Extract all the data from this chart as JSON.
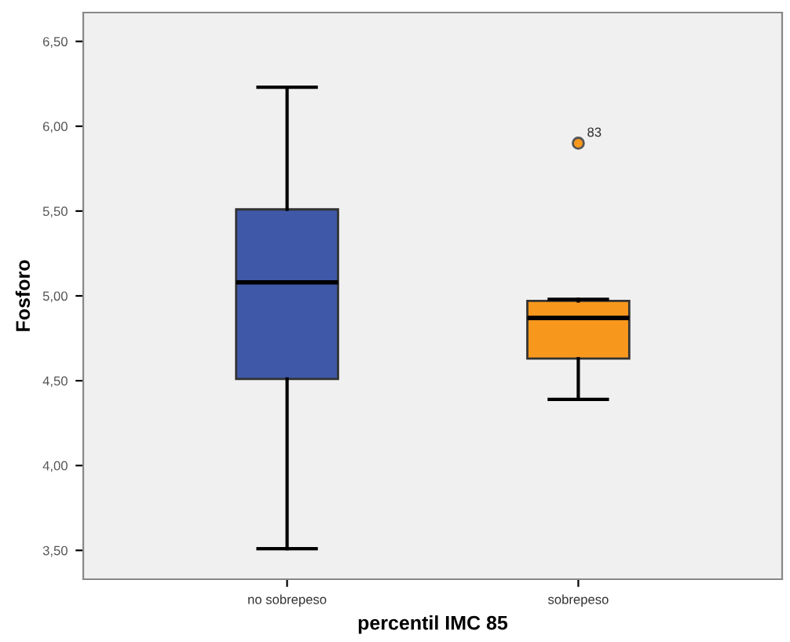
{
  "chart_data": {
    "type": "box",
    "xlabel": "percentil IMC 85",
    "ylabel": "Fosforo",
    "categories": [
      "no sobrepeso",
      "sobrepeso"
    ],
    "colors": [
      "#3f58a8",
      "#f7981d"
    ],
    "boxes": [
      {
        "low": 3.51,
        "q1": 4.51,
        "median": 5.08,
        "q3": 5.51,
        "high": 6.23
      },
      {
        "low": 4.39,
        "q1": 4.63,
        "median": 4.87,
        "q3": 4.97,
        "high": 4.98,
        "outliers": [
          5.9
        ]
      }
    ],
    "annotations": [
      "83"
    ],
    "ylim": [
      3.33,
      6.67
    ],
    "yticks": [
      {
        "value": 3.5,
        "label": "3,50"
      },
      {
        "value": 4.0,
        "label": "4,00"
      },
      {
        "value": 4.5,
        "label": "4,50"
      },
      {
        "value": 5.0,
        "label": "5,00"
      },
      {
        "value": 5.5,
        "label": "5,50"
      },
      {
        "value": 6.0,
        "label": "6,00"
      },
      {
        "value": 6.5,
        "label": "6,50"
      }
    ],
    "grid": false
  }
}
